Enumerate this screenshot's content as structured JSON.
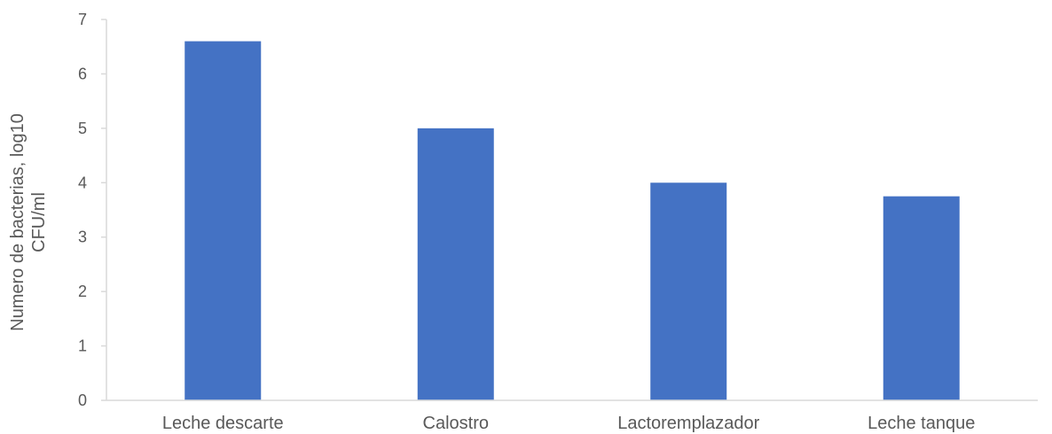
{
  "chart_data": {
    "type": "bar",
    "categories": [
      "Leche descarte",
      "Calostro",
      "Lactoremplazador",
      "Leche tanque"
    ],
    "values": [
      6.6,
      5.0,
      4.0,
      3.75
    ],
    "ylabel_lines": [
      "Numero de bacterias, log10",
      "CFU/ml"
    ],
    "ylim": [
      0,
      7
    ],
    "yticks": [
      0,
      1,
      2,
      3,
      4,
      5,
      6,
      7
    ],
    "grid": false,
    "legend": "none",
    "bar_color": "#4472C4",
    "axis_color": "#D9D9D9",
    "text_color": "#595959"
  }
}
